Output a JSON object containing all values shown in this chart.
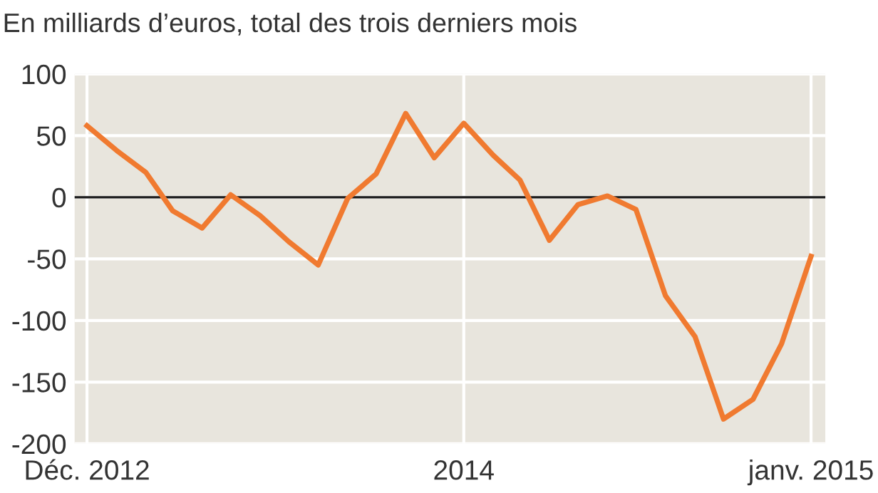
{
  "chart_data": {
    "type": "line",
    "title": "En milliards d’euros, total des trois derniers mois",
    "x": [
      "2012-12",
      "2013-01",
      "2013-02",
      "2013-03",
      "2013-04",
      "2013-05",
      "2013-06",
      "2013-07",
      "2013-08",
      "2013-09",
      "2013-10",
      "2013-11",
      "2013-12",
      "2014-01",
      "2014-02",
      "2014-03",
      "2014-04",
      "2014-05",
      "2014-06",
      "2014-07",
      "2014-08",
      "2014-09",
      "2014-10",
      "2014-11",
      "2014-12",
      "2015-01"
    ],
    "series": [
      {
        "color": "#f07a30",
        "values": [
          58,
          38,
          20,
          -11,
          -25,
          2,
          -15,
          -36,
          -55,
          -1,
          19,
          68,
          32,
          60,
          34,
          14,
          -35,
          -6,
          1,
          -10,
          -80,
          -113,
          -180,
          -164,
          -119,
          -48
        ]
      }
    ],
    "xlim": [
      "2012-11-18",
      "2015-01-16"
    ],
    "xticks": [
      {
        "value": "2012-12",
        "label": "Déc. 2012"
      },
      {
        "value": "2014-01",
        "label": "2014"
      },
      {
        "value": "2015-01",
        "label": "janv. 2015"
      }
    ],
    "ylim": [
      -200,
      100
    ],
    "yticks": [
      -200,
      -150,
      -100,
      -50,
      0,
      50,
      100
    ],
    "ref_lines": [
      {
        "axis": "y",
        "value": 0,
        "color": "#1a1a1a"
      }
    ],
    "grid": true,
    "marker": "none",
    "line_style": "solid"
  }
}
